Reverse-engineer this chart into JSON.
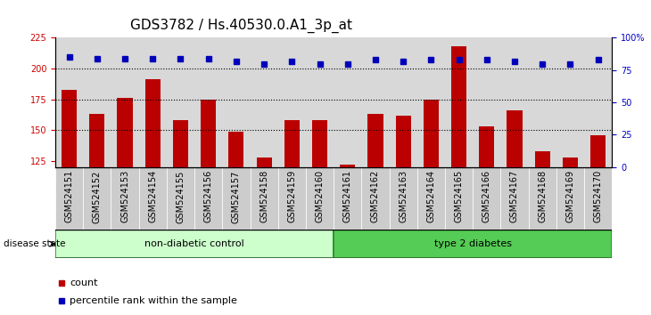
{
  "title": "GDS3782 / Hs.40530.0.A1_3p_at",
  "samples": [
    "GSM524151",
    "GSM524152",
    "GSM524153",
    "GSM524154",
    "GSM524155",
    "GSM524156",
    "GSM524157",
    "GSM524158",
    "GSM524159",
    "GSM524160",
    "GSM524161",
    "GSM524162",
    "GSM524163",
    "GSM524164",
    "GSM524165",
    "GSM524166",
    "GSM524167",
    "GSM524168",
    "GSM524169",
    "GSM524170"
  ],
  "counts": [
    183,
    163,
    176,
    191,
    158,
    175,
    149,
    128,
    158,
    158,
    122,
    163,
    162,
    175,
    218,
    153,
    166,
    133,
    128,
    146
  ],
  "percentile_ranks": [
    85,
    84,
    84,
    84,
    84,
    84,
    82,
    80,
    82,
    80,
    80,
    83,
    82,
    83,
    83,
    83,
    82,
    80,
    80,
    83
  ],
  "non_diabetic_count": 10,
  "type2_diabetes_count": 10,
  "ylim_left": [
    120,
    225
  ],
  "ylim_right": [
    0,
    100
  ],
  "yticks_left": [
    125,
    150,
    175,
    200,
    225
  ],
  "yticks_right": [
    0,
    25,
    50,
    75,
    100
  ],
  "bar_color": "#bb0000",
  "dot_color": "#0000bb",
  "bar_bottom": 120,
  "background_color": "#ffffff",
  "group1_label": "non-diabetic control",
  "group2_label": "type 2 diabetes",
  "group1_color": "#ccffcc",
  "group2_color": "#55cc55",
  "group_edge_color": "#338833",
  "disease_state_label": "disease state",
  "legend_count_label": "count",
  "legend_percentile_label": "percentile rank within the sample",
  "tick_label_color_left": "#cc0000",
  "tick_label_color_right": "#0000cc",
  "title_fontsize": 11,
  "tick_fontsize": 7,
  "bar_width": 0.55,
  "xlabel_area_color": "#cccccc"
}
